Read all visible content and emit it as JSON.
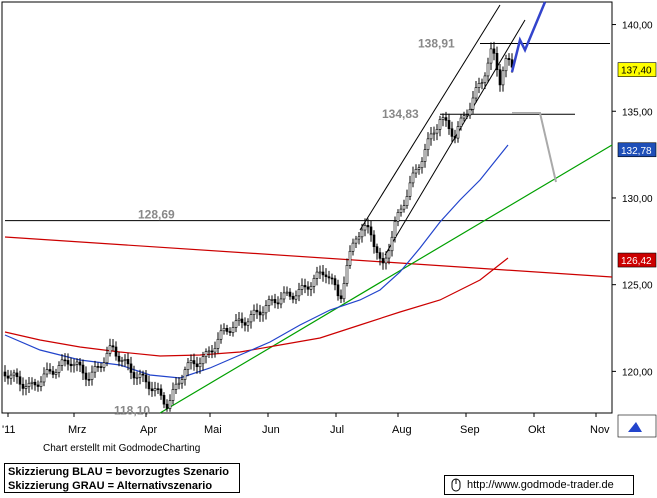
{
  "chart_data": {
    "type": "candlestick",
    "x_labels": [
      "'11",
      "Mrz",
      "Apr",
      "Mai",
      "Jun",
      "Jul",
      "Aug",
      "Sep",
      "Okt",
      "Nov"
    ],
    "y_ticks": [
      120,
      125,
      130,
      135,
      140
    ],
    "y_tick_labels": [
      "120,00",
      "125,00",
      "130,00",
      "135,00",
      "140,00"
    ],
    "ylim": [
      117.6,
      141.3
    ],
    "last_price": "137,40",
    "price_labels": [
      {
        "text": "137,40",
        "value": 137.4,
        "bg": "#ffff00",
        "color": "#000000"
      },
      {
        "text": "132,78",
        "value": 132.78,
        "bg": "#1f4fb8",
        "color": "#ffffff"
      },
      {
        "text": "126,42",
        "value": 126.42,
        "bg": "#cc0000",
        "color": "#ffffff"
      }
    ],
    "annotations": [
      {
        "text": "138,91",
        "value": 138.91
      },
      {
        "text": "134,83",
        "value": 134.83
      },
      {
        "text": "128,69",
        "value": 128.69
      },
      {
        "text": "118,10",
        "value": 118.1
      }
    ],
    "colors": {
      "fast_ma": "#2244cc",
      "slow_ma": "#cc0000",
      "trend": "#00a000",
      "long_line": "#cc0000",
      "horizontal": "#000000",
      "preferred": "#3344cc",
      "alternative": "#aaaaaa"
    }
  },
  "footer": {
    "credit": "Chart erstellt mit GodmodeCharting",
    "legend_line1": "Skizzierung BLAU = bevorzugtes Szenario",
    "legend_line2": "Skizzierung GRAU = Alternativszenario",
    "url": "http://www.godmode-trader.de"
  }
}
